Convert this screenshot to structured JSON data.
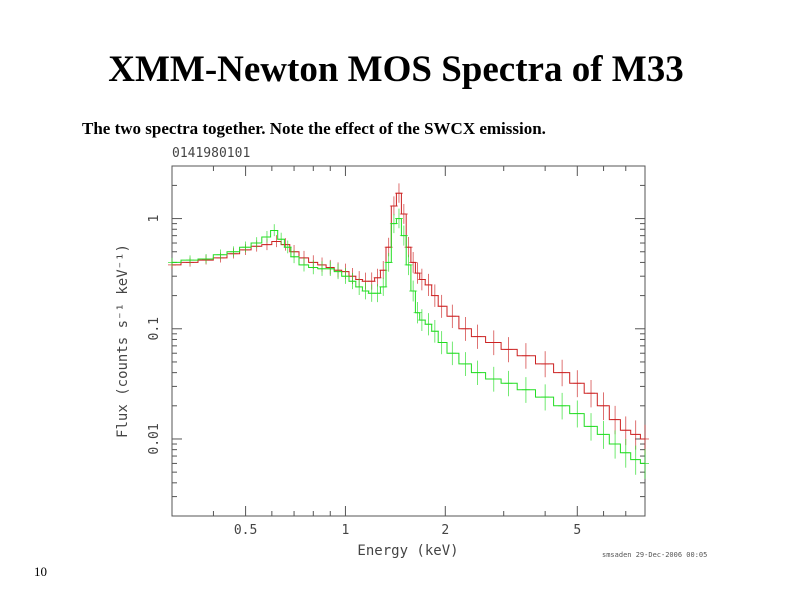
{
  "slide": {
    "title": "XMM-Newton MOS Spectra of M33",
    "subtitle": "The two spectra together.  Note the effect of the SWCX emission.",
    "page_number": "10",
    "footer_stamp": "smsaden 29-Dec-2006 00:05"
  },
  "colors": {
    "series_red": "#cc2222",
    "series_green": "#22dd22",
    "axes": "#555555"
  },
  "chart_data": {
    "type": "line",
    "title": "0141980101",
    "xlabel": "Energy (keV)",
    "ylabel": "Flux (counts s⁻¹ keV⁻¹)",
    "x_scale": "log",
    "y_scale": "log",
    "xlim": [
      0.3,
      8.0
    ],
    "ylim": [
      0.002,
      3.0
    ],
    "x_ticks": [
      {
        "value": 0.5,
        "label": "0.5"
      },
      {
        "value": 1,
        "label": "1"
      },
      {
        "value": 2,
        "label": "2"
      },
      {
        "value": 5,
        "label": "5"
      }
    ],
    "y_ticks": [
      {
        "value": 0.01,
        "label": "0.01"
      },
      {
        "value": 0.1,
        "label": "0.1"
      },
      {
        "value": 1,
        "label": "1"
      }
    ],
    "grid": false,
    "legend": "none",
    "series": [
      {
        "color": "red",
        "points": [
          [
            0.3,
            0.38
          ],
          [
            0.34,
            0.4
          ],
          [
            0.38,
            0.42
          ],
          [
            0.42,
            0.44
          ],
          [
            0.46,
            0.48
          ],
          [
            0.5,
            0.52
          ],
          [
            0.54,
            0.56
          ],
          [
            0.58,
            0.58
          ],
          [
            0.62,
            0.62
          ],
          [
            0.66,
            0.58
          ],
          [
            0.7,
            0.5
          ],
          [
            0.75,
            0.44
          ],
          [
            0.8,
            0.4
          ],
          [
            0.85,
            0.38
          ],
          [
            0.9,
            0.36
          ],
          [
            0.95,
            0.34
          ],
          [
            1.0,
            0.33
          ],
          [
            1.05,
            0.3
          ],
          [
            1.1,
            0.28
          ],
          [
            1.15,
            0.27
          ],
          [
            1.2,
            0.27
          ],
          [
            1.25,
            0.29
          ],
          [
            1.3,
            0.34
          ],
          [
            1.35,
            0.55
          ],
          [
            1.4,
            1.3
          ],
          [
            1.45,
            1.7
          ],
          [
            1.5,
            1.1
          ],
          [
            1.55,
            0.55
          ],
          [
            1.6,
            0.4
          ],
          [
            1.65,
            0.32
          ],
          [
            1.7,
            0.28
          ],
          [
            1.78,
            0.25
          ],
          [
            1.86,
            0.2
          ],
          [
            1.95,
            0.16
          ],
          [
            2.1,
            0.13
          ],
          [
            2.3,
            0.1
          ],
          [
            2.5,
            0.085
          ],
          [
            2.8,
            0.075
          ],
          [
            3.1,
            0.065
          ],
          [
            3.5,
            0.057
          ],
          [
            4.0,
            0.048
          ],
          [
            4.5,
            0.04
          ],
          [
            5.0,
            0.032
          ],
          [
            5.5,
            0.026
          ],
          [
            6.0,
            0.02
          ],
          [
            6.5,
            0.015
          ],
          [
            7.0,
            0.012
          ],
          [
            7.5,
            0.011
          ],
          [
            8.0,
            0.01
          ]
        ]
      },
      {
        "color": "green",
        "points": [
          [
            0.3,
            0.4
          ],
          [
            0.34,
            0.42
          ],
          [
            0.38,
            0.43
          ],
          [
            0.42,
            0.47
          ],
          [
            0.46,
            0.5
          ],
          [
            0.5,
            0.55
          ],
          [
            0.54,
            0.6
          ],
          [
            0.58,
            0.68
          ],
          [
            0.61,
            0.78
          ],
          [
            0.64,
            0.65
          ],
          [
            0.67,
            0.55
          ],
          [
            0.7,
            0.45
          ],
          [
            0.75,
            0.38
          ],
          [
            0.8,
            0.36
          ],
          [
            0.85,
            0.35
          ],
          [
            0.9,
            0.35
          ],
          [
            0.95,
            0.33
          ],
          [
            1.0,
            0.3
          ],
          [
            1.05,
            0.27
          ],
          [
            1.1,
            0.24
          ],
          [
            1.15,
            0.22
          ],
          [
            1.2,
            0.21
          ],
          [
            1.25,
            0.21
          ],
          [
            1.3,
            0.24
          ],
          [
            1.35,
            0.4
          ],
          [
            1.4,
            0.9
          ],
          [
            1.45,
            1.0
          ],
          [
            1.5,
            0.7
          ],
          [
            1.55,
            0.38
          ],
          [
            1.6,
            0.22
          ],
          [
            1.65,
            0.14
          ],
          [
            1.7,
            0.12
          ],
          [
            1.78,
            0.11
          ],
          [
            1.86,
            0.095
          ],
          [
            1.95,
            0.075
          ],
          [
            2.1,
            0.06
          ],
          [
            2.3,
            0.048
          ],
          [
            2.5,
            0.04
          ],
          [
            2.8,
            0.035
          ],
          [
            3.1,
            0.032
          ],
          [
            3.5,
            0.028
          ],
          [
            4.0,
            0.024
          ],
          [
            4.5,
            0.02
          ],
          [
            5.0,
            0.017
          ],
          [
            5.5,
            0.013
          ],
          [
            6.0,
            0.011
          ],
          [
            6.5,
            0.009
          ],
          [
            7.0,
            0.0075
          ],
          [
            7.5,
            0.0065
          ],
          [
            8.0,
            0.006
          ]
        ]
      }
    ]
  }
}
